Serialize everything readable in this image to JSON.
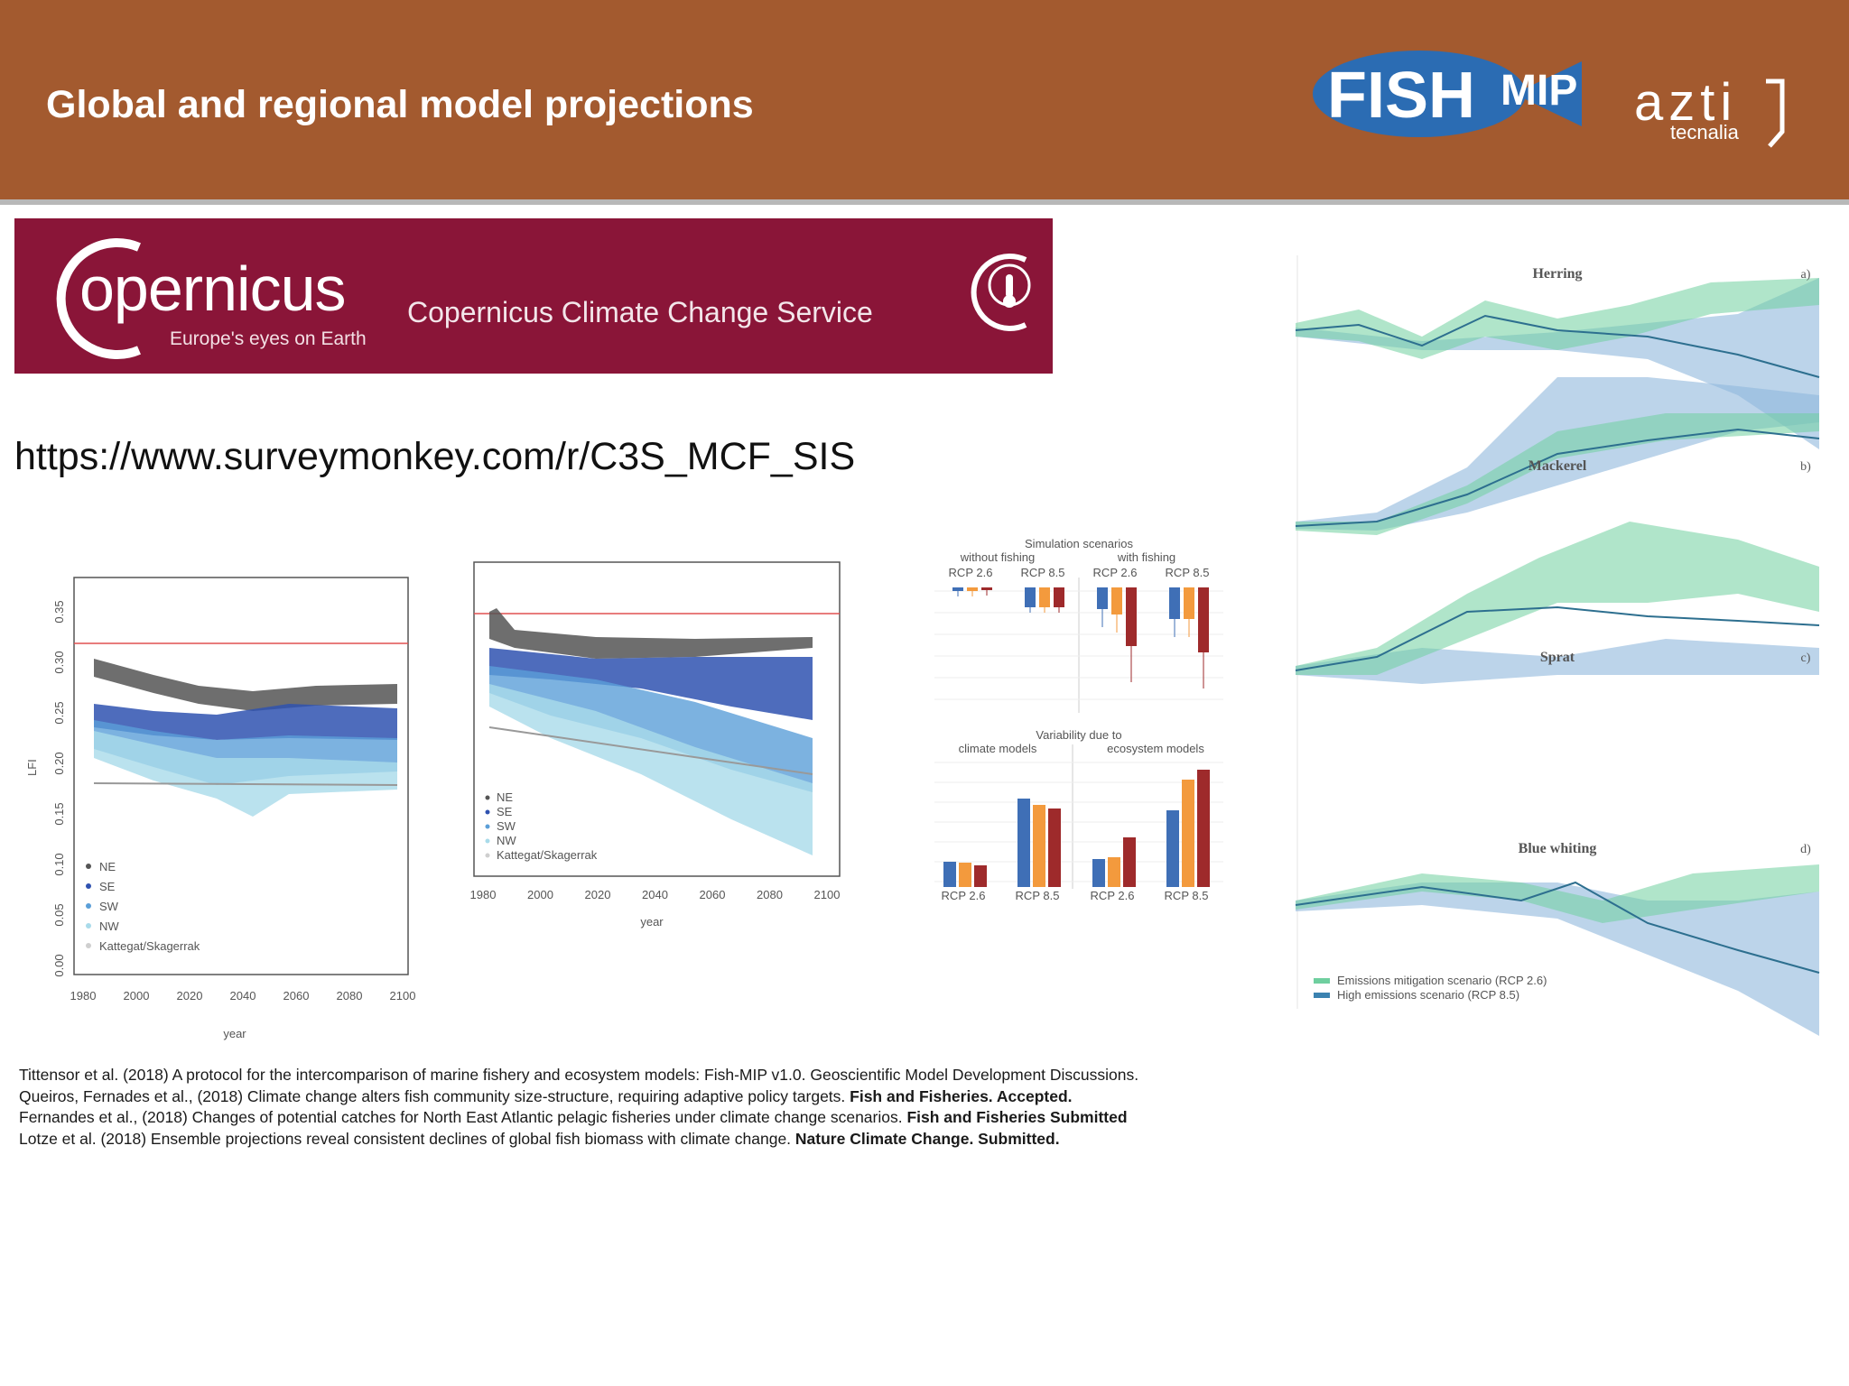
{
  "header": {
    "title": "Global and regional model projections",
    "logos": {
      "fishmip_word1": "FISH",
      "fishmip_word2": "MIP",
      "azti": "azti",
      "azti_sub": "tecnalia"
    }
  },
  "banner": {
    "brand": "opernicus",
    "brand_initial": "C",
    "tagline": "Europe's eyes on Earth",
    "service": "Copernicus Climate Change Service",
    "background": "#8a1538"
  },
  "link": {
    "url": "https://www.surveymonkey.com/r/C3S_MCF_SIS"
  },
  "charts": {
    "lfi": {
      "ylabel": "LFI",
      "xlabel": "year",
      "xticks": [
        "1980",
        "2000",
        "2020",
        "2040",
        "2060",
        "2080",
        "2100"
      ],
      "yticks": [
        "0.00",
        "0.05",
        "0.10",
        "0.15",
        "0.20",
        "0.25",
        "0.30",
        "0.35"
      ],
      "legend": [
        "NE",
        "SE",
        "SW",
        "NW",
        "Kattegat/Skagerrak"
      ]
    },
    "regions2": {
      "xlabel": "year",
      "xticks": [
        "1980",
        "2000",
        "2020",
        "2040",
        "2060",
        "2080",
        "2100"
      ],
      "legend": [
        "NE",
        "SE",
        "SW",
        "NW",
        "Kattegat/Skagerrak"
      ]
    },
    "scenarios": {
      "top_title": "Simulation scenarios",
      "top_groups": [
        "without fishing",
        "with fishing"
      ],
      "top_cats": [
        "RCP 2.6",
        "RCP 8.5",
        "RCP 2.6",
        "RCP 8.5"
      ],
      "bottom_title": "Variability due to",
      "bottom_groups": [
        "climate models",
        "ecosystem models"
      ],
      "bottom_cats": [
        "RCP 2.6",
        "RCP 8.5",
        "RCP 2.6",
        "RCP 8.5"
      ],
      "colors": [
        "#3f6fb6",
        "#f39a3d",
        "#9e2a2b"
      ]
    },
    "species": {
      "panels": [
        {
          "name": "Herring",
          "tag": "a)"
        },
        {
          "name": "Mackerel",
          "tag": "b)"
        },
        {
          "name": "Sprat",
          "tag": "c)"
        },
        {
          "name": "Blue whiting",
          "tag": "d)"
        }
      ],
      "legend": [
        "Emissions mitigation scenario (RCP 2.6)",
        "High emissions scenario (RCP 8.5)"
      ],
      "colors": {
        "rcp26": "#6fcf9f",
        "rcp85": "#8fb8dc"
      }
    }
  },
  "references": [
    {
      "text": "Tittensor et al. (2018) A protocol for the intercomparison of marine fishery and ecosystem models: Fish-MIP v1.0. Geoscientific Model Development Discussions.",
      "bold": ""
    },
    {
      "text": "Queiros, Fernades et al., (2018) Climate change alters fish community size-structure, requiring adaptive policy targets. ",
      "bold": "Fish and Fisheries. Accepted."
    },
    {
      "text": "Fernandes et al., (2018) Changes of potential catches for North East Atlantic pelagic fisheries under climate change scenarios. ",
      "bold": "Fish and Fisheries Submitted"
    },
    {
      "text": "Lotze et al. (2018) Ensemble projections reveal consistent declines of global fish biomass with climate change. ",
      "bold": "Nature Climate Change. Submitted."
    }
  ]
}
